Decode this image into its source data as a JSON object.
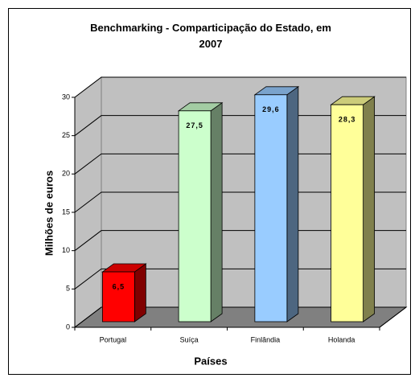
{
  "chart_data": {
    "type": "bar3d",
    "title": "Benchmarking - Comparticipação do Estado, em 2007",
    "x_label": "Países",
    "y_label": "Milhões de euros",
    "categories": [
      "Portugal",
      "Suíça",
      "Finlândia",
      "Holanda"
    ],
    "values": [
      6.5,
      27.5,
      29.6,
      28.3
    ],
    "value_labels": [
      "6,5",
      "27,5",
      "29,6",
      "28,3"
    ],
    "colors": [
      "#ff0000",
      "#ccffcc",
      "#99ccff",
      "#ffff99"
    ],
    "ylim": [
      0,
      30
    ],
    "yticks": [
      0,
      5,
      10,
      15,
      20,
      25,
      30
    ],
    "grid": true
  }
}
